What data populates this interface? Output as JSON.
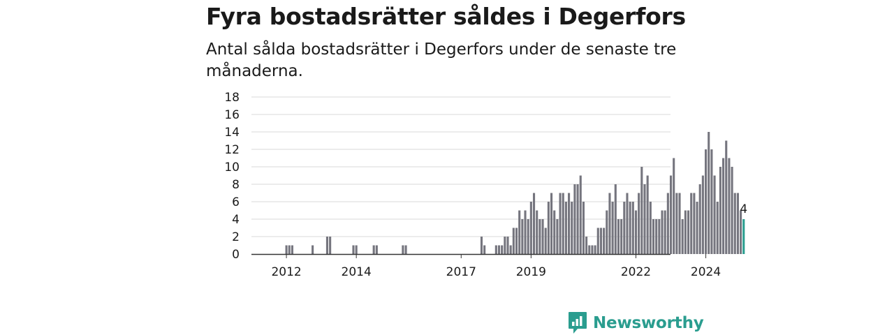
{
  "title": "Fyra bostadsrätter såldes i Degerfors",
  "subtitle": "Antal sålda bostadsrätter i Degerfors under de senaste tre månaderna.",
  "brand": {
    "name": "Newsworthy",
    "logo_icon": "bar-chart-speech-bubble-icon",
    "color": "#2a9d8f"
  },
  "chart_data": {
    "type": "bar",
    "title": "Fyra bostadsrätter såldes i Degerfors",
    "subtitle": "Antal sålda bostadsrätter i Degerfors under de senaste tre månaderna.",
    "xlabel": "",
    "ylabel": "",
    "x_ticks": [
      "2012",
      "2014",
      "2017",
      "2019",
      "2022",
      "2024"
    ],
    "y_ticks": [
      0,
      2,
      4,
      6,
      8,
      10,
      12,
      14,
      16,
      18
    ],
    "ylim": [
      0,
      18
    ],
    "grid": true,
    "bar_color": "#75757e",
    "highlight_color": "#2a9d8f",
    "highlight_label": "4",
    "period": "three-month rolling, monthly",
    "first_period": "2011-04",
    "values": [
      0,
      0,
      0,
      0,
      0,
      0,
      0,
      0,
      0,
      1,
      1,
      1,
      0,
      0,
      0,
      0,
      0,
      0,
      1,
      0,
      0,
      0,
      0,
      2,
      2,
      0,
      0,
      0,
      0,
      0,
      0,
      0,
      1,
      1,
      0,
      0,
      0,
      0,
      0,
      1,
      1,
      0,
      0,
      0,
      0,
      0,
      0,
      0,
      0,
      1,
      1,
      0,
      0,
      0,
      0,
      0,
      0,
      0,
      0,
      0,
      0,
      0,
      0,
      0,
      0,
      0,
      0,
      0,
      0,
      0,
      0,
      0,
      0,
      0,
      0,
      0,
      2,
      1,
      0,
      0,
      0,
      1,
      1,
      1,
      2,
      2,
      1,
      3,
      3,
      5,
      4,
      5,
      4,
      6,
      7,
      5,
      4,
      4,
      3,
      6,
      7,
      5,
      4,
      7,
      7,
      6,
      7,
      6,
      8,
      8,
      9,
      6,
      2,
      1,
      1,
      1,
      3,
      3,
      3,
      5,
      7,
      6,
      8,
      4,
      4,
      6,
      7,
      6,
      6,
      5,
      7,
      10,
      8,
      9,
      6,
      4,
      4,
      4,
      5,
      5,
      7,
      9,
      11,
      7,
      7,
      4,
      5,
      5,
      7,
      7,
      6,
      8,
      9,
      12,
      14,
      12,
      9,
      6,
      10,
      11,
      13,
      11,
      10,
      7,
      7,
      5,
      4
    ],
    "highlight": [
      0,
      0,
      0,
      0,
      0,
      0,
      0,
      0,
      0,
      0,
      0,
      0,
      0,
      0,
      0,
      0,
      0,
      0,
      0,
      0,
      0,
      0,
      0,
      0,
      0,
      0,
      0,
      0,
      0,
      0,
      0,
      0,
      0,
      0,
      0,
      0,
      0,
      0,
      0,
      0,
      0,
      0,
      0,
      0,
      0,
      0,
      0,
      0,
      0,
      0,
      0,
      0,
      0,
      0,
      0,
      0,
      0,
      0,
      0,
      0,
      0,
      0,
      0,
      0,
      0,
      0,
      0,
      0,
      0,
      0,
      0,
      0,
      0,
      0,
      0,
      0,
      0,
      0,
      0,
      0,
      0,
      0,
      0,
      0,
      0,
      0,
      0,
      0,
      0,
      0,
      0,
      0,
      0,
      0,
      0,
      0,
      0,
      0,
      0,
      0,
      0,
      0,
      0,
      0,
      0,
      0,
      0,
      0,
      0,
      0,
      0,
      0,
      0,
      0,
      0,
      0,
      0,
      0,
      0,
      0,
      0,
      0,
      0,
      0,
      0,
      0,
      0,
      0,
      0,
      0,
      0,
      0,
      0,
      0,
      0,
      0,
      0,
      0,
      0,
      0,
      0,
      0,
      0,
      0,
      0,
      0,
      0,
      0,
      0,
      0,
      0,
      0,
      0,
      0,
      0,
      0,
      0,
      0,
      0,
      0,
      0,
      0,
      0,
      0,
      0,
      0,
      1
    ]
  }
}
